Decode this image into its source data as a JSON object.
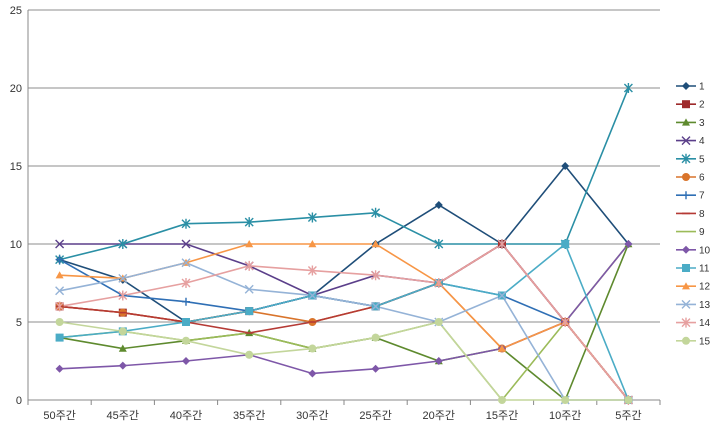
{
  "chart_data": {
    "type": "line",
    "title": "",
    "xlabel": "",
    "ylabel": "",
    "ylim": [
      0,
      25
    ],
    "yticks": [
      "0",
      "5",
      "10",
      "15",
      "20",
      "25"
    ],
    "categories": [
      "50주간",
      "45주간",
      "40주간",
      "35주간",
      "30주간",
      "25주간",
      "20주간",
      "15주간",
      "10주간",
      "5주간"
    ],
    "grid": "horizontal",
    "legend_position": "right",
    "series": [
      {
        "name": "1",
        "color": "#1F4E79",
        "marker": "diamond",
        "values": [
          9,
          7.7,
          5,
          5.7,
          6.7,
          10,
          12.5,
          10,
          15,
          10
        ]
      },
      {
        "name": "2",
        "color": "#9E2A2B",
        "marker": "square",
        "values": [
          6,
          5.6,
          5,
          5.7,
          6.7,
          6,
          7.5,
          10,
          5,
          0
        ]
      },
      {
        "name": "3",
        "color": "#5E8A2E",
        "marker": "triangle",
        "values": [
          4,
          3.3,
          3.8,
          4.3,
          3.3,
          4,
          2.5,
          3.3,
          0,
          10
        ]
      },
      {
        "name": "4",
        "color": "#5B3F8A",
        "marker": "x",
        "values": [
          10,
          10,
          10,
          8.6,
          6.7,
          8,
          7.5,
          10,
          5,
          0
        ]
      },
      {
        "name": "5",
        "color": "#2A8FA5",
        "marker": "star",
        "values": [
          9,
          10,
          11.3,
          11.4,
          11.7,
          12,
          10,
          10,
          10,
          20
        ]
      },
      {
        "name": "6",
        "color": "#D9742B",
        "marker": "circle",
        "values": [
          6,
          5.6,
          5,
          5.7,
          5,
          6,
          7.5,
          3.3,
          5,
          0
        ]
      },
      {
        "name": "7",
        "color": "#2F6FB5",
        "marker": "plus",
        "values": [
          9,
          6.7,
          6.3,
          5.7,
          6.7,
          6,
          7.5,
          6.7,
          5,
          0
        ]
      },
      {
        "name": "8",
        "color": "#B53A35",
        "marker": "dash",
        "values": [
          6,
          5.6,
          5,
          4.3,
          5,
          6,
          7.5,
          10,
          5,
          0
        ]
      },
      {
        "name": "9",
        "color": "#9BBB59",
        "marker": "none",
        "values": [
          4,
          4.4,
          3.8,
          4.3,
          3.3,
          4,
          5,
          0,
          5,
          10
        ]
      },
      {
        "name": "10",
        "color": "#7E57A8",
        "marker": "diamond",
        "values": [
          2,
          2.2,
          2.5,
          2.9,
          1.7,
          2,
          2.5,
          3.3,
          5,
          10
        ]
      },
      {
        "name": "11",
        "color": "#4BACC6",
        "marker": "square",
        "values": [
          4,
          4.4,
          5,
          5.7,
          6.7,
          6,
          7.5,
          6.7,
          10,
          0
        ]
      },
      {
        "name": "12",
        "color": "#F79646",
        "marker": "triangle",
        "values": [
          8,
          7.8,
          8.8,
          10,
          10,
          10,
          7.5,
          3.3,
          5,
          0
        ]
      },
      {
        "name": "13",
        "color": "#95B3D7",
        "marker": "x",
        "values": [
          7,
          7.8,
          8.8,
          7.1,
          6.7,
          6,
          5,
          6.7,
          0,
          0
        ]
      },
      {
        "name": "14",
        "color": "#E6A0A0",
        "marker": "star",
        "values": [
          6,
          6.7,
          7.5,
          8.6,
          8.3,
          8,
          7.5,
          10,
          5,
          0
        ]
      },
      {
        "name": "15",
        "color": "#C3D69B",
        "marker": "circle",
        "values": [
          5,
          4.4,
          3.8,
          2.9,
          3.3,
          4,
          5,
          0,
          0,
          0
        ]
      }
    ]
  }
}
